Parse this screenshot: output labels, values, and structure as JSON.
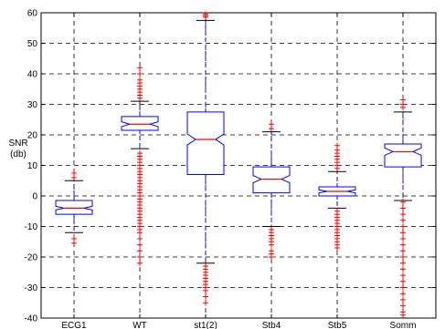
{
  "chart_data": {
    "type": "boxplot",
    "title": "",
    "xlabel": "",
    "ylabel": "SNR",
    "ylabel_unit": "(db)",
    "ylim": [
      -40,
      60
    ],
    "yticks": [
      -40,
      -30,
      -20,
      -10,
      0,
      10,
      20,
      30,
      40,
      50,
      60
    ],
    "grid": true,
    "notched": true,
    "box_color": "#0000ff",
    "median_color": "#ff0000",
    "outlier_color": "#ff0000",
    "grid_color": "#000000",
    "categories": [
      "ECG1",
      "WT",
      "st1(2)",
      "Stb4",
      "Stb5",
      "Somm"
    ],
    "series": [
      {
        "whisker_low": -12,
        "q1": -6,
        "median": -4,
        "q3": -1.5,
        "whisker_high": 5,
        "notch_halfwidth": 0.6,
        "outliers": [
          6,
          7.5,
          -14,
          -15.5
        ]
      },
      {
        "whisker_low": 15.5,
        "q1": 21.5,
        "median": 23.5,
        "q3": 26,
        "whisker_high": 31,
        "notch_halfwidth": 0.8,
        "outliers": [
          32,
          33,
          34,
          35,
          36,
          37,
          38,
          40,
          42,
          14,
          13,
          12,
          11,
          10,
          9,
          8,
          7,
          6,
          5,
          4,
          3,
          2,
          1,
          0,
          -1,
          -2,
          -3,
          -4,
          -5,
          -6,
          -7,
          -8,
          -9,
          -10,
          -11,
          -12,
          -14,
          -16,
          -18,
          -20,
          -22
        ]
      },
      {
        "whisker_low": -22,
        "q1": 7,
        "median": 18.5,
        "q3": 27.5,
        "whisker_high": 57.5,
        "notch_halfwidth": 1.8,
        "outliers": [
          58.5,
          59,
          59.5,
          -23,
          -24,
          -25,
          -26,
          -27,
          -28,
          -29,
          -30,
          -31,
          -33,
          -35
        ]
      },
      {
        "whisker_low": -10,
        "q1": 1,
        "median": 5.5,
        "q3": 9.5,
        "whisker_high": 21,
        "notch_halfwidth": 1.2,
        "outliers": [
          23.5,
          22,
          -11,
          -12,
          -13,
          -14,
          -15,
          -16,
          -18,
          -19,
          -20
        ]
      },
      {
        "whisker_low": -4,
        "q1": 0,
        "median": 1.5,
        "q3": 3,
        "whisker_high": 8,
        "notch_halfwidth": 0.5,
        "outliers": [
          9,
          10,
          11,
          12,
          13,
          14,
          15,
          16.5,
          -5,
          -6,
          -7,
          -8,
          -9,
          -10,
          -11,
          -12,
          -13,
          -14,
          -15,
          -16,
          -17
        ]
      },
      {
        "whisker_low": -1.5,
        "q1": 9.5,
        "median": 14.5,
        "q3": 17,
        "whisker_high": 27.5,
        "notch_halfwidth": 1.2,
        "outliers": [
          29,
          30,
          31.5,
          -2,
          -4,
          -6,
          -8,
          -10,
          -12,
          -14,
          -16,
          -18,
          -20,
          -22,
          -24,
          -26,
          -28,
          -30,
          -32,
          -34,
          -36,
          -38,
          -39
        ]
      }
    ]
  }
}
